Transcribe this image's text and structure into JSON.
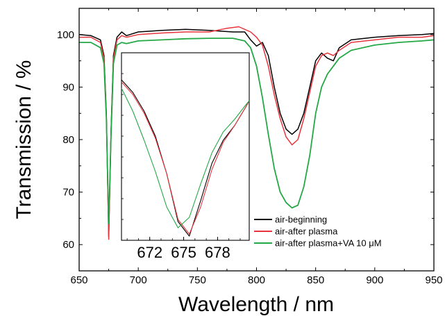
{
  "chart_data": {
    "type": "line",
    "title": "",
    "xlabel": "Wavelength / nm",
    "ylabel": "Transmission / %",
    "xlim": [
      650,
      950
    ],
    "ylim": [
      55,
      105
    ],
    "x_ticks": [
      "650",
      "700",
      "750",
      "800",
      "850",
      "900",
      "950"
    ],
    "y_ticks": [
      "60",
      "70",
      "80",
      "90",
      "100"
    ],
    "grid": false,
    "legend_position": "bottom-right",
    "series": [
      {
        "name": "air-beginning",
        "color": "#000000",
        "x": [
          650,
          660,
          668,
          671,
          673,
          675,
          677,
          679,
          682,
          686,
          690,
          700,
          720,
          740,
          760,
          780,
          790,
          795,
          800,
          805,
          810,
          815,
          820,
          825,
          830,
          835,
          840,
          845,
          850,
          855,
          860,
          865,
          870,
          880,
          900,
          920,
          940,
          950
        ],
        "y": [
          100.0,
          99.8,
          99.0,
          96.0,
          85.0,
          61.5,
          82.0,
          96.0,
          99.5,
          100.5,
          99.8,
          100.5,
          100.8,
          101.0,
          100.8,
          100.5,
          100.5,
          99.0,
          97.8,
          98.5,
          96.0,
          90.0,
          85.0,
          82.0,
          81.0,
          82.0,
          85.0,
          90.0,
          95.0,
          96.5,
          95.5,
          95.0,
          97.5,
          99.0,
          99.5,
          99.8,
          100.0,
          100.2
        ]
      },
      {
        "name": "air-after plasma",
        "color": "#e8333c",
        "x": [
          650,
          660,
          668,
          671,
          673,
          675,
          677,
          679,
          682,
          686,
          690,
          700,
          720,
          740,
          760,
          775,
          785,
          795,
          800,
          805,
          810,
          815,
          820,
          825,
          830,
          835,
          840,
          845,
          850,
          855,
          860,
          865,
          870,
          880,
          900,
          920,
          940,
          950
        ],
        "y": [
          99.5,
          99.5,
          98.5,
          95.5,
          84.5,
          61.0,
          81.5,
          95.5,
          99.0,
          99.8,
          99.5,
          100.0,
          100.3,
          100.5,
          100.5,
          101.2,
          101.5,
          100.5,
          99.5,
          98.0,
          94.0,
          88.5,
          84.0,
          80.5,
          79.0,
          80.0,
          84.0,
          89.0,
          94.0,
          96.0,
          96.5,
          96.0,
          97.0,
          98.5,
          99.0,
          99.5,
          99.5,
          99.8
        ]
      },
      {
        "name": "air-after plasma+VA 10 μM",
        "color": "#22a845",
        "x": [
          650,
          660,
          668,
          671,
          673,
          675,
          677,
          679,
          682,
          686,
          690,
          700,
          720,
          740,
          760,
          780,
          790,
          795,
          800,
          805,
          810,
          815,
          820,
          825,
          830,
          835,
          840,
          845,
          850,
          855,
          860,
          865,
          870,
          880,
          900,
          920,
          940,
          950
        ],
        "y": [
          98.5,
          98.5,
          97.5,
          94.5,
          84.0,
          64.0,
          81.0,
          94.5,
          98.0,
          98.5,
          98.3,
          98.8,
          99.0,
          99.2,
          99.3,
          99.3,
          98.8,
          97.5,
          94.0,
          88.0,
          81.0,
          74.5,
          70.0,
          68.0,
          67.0,
          67.5,
          71.0,
          77.0,
          85.0,
          90.0,
          92.5,
          94.0,
          95.5,
          97.0,
          98.0,
          98.5,
          98.8,
          99.0
        ]
      }
    ],
    "inset": {
      "x_ticks": [
        "672",
        "675",
        "678"
      ],
      "xlim": [
        669.5,
        680.8
      ],
      "ylim": [
        60,
        105
      ],
      "series": [
        {
          "name": "air-beginning",
          "color": "#000000",
          "x": [
            669.5,
            670.5,
            671.5,
            672.5,
            673.5,
            674.5,
            675.5,
            676.5,
            677.5,
            678.5,
            679.5,
            680.5,
            680.8
          ],
          "y": [
            98.5,
            95.5,
            91.0,
            85.0,
            76.0,
            64.5,
            61.0,
            69.5,
            78.5,
            84.0,
            87.5,
            92.0,
            93.5
          ]
        },
        {
          "name": "air-after plasma",
          "color": "#e8333c",
          "x": [
            669.5,
            670.5,
            671.5,
            672.5,
            673.5,
            674.5,
            675.5,
            676.5,
            677.5,
            678.5,
            679.5,
            680.5,
            680.8
          ],
          "y": [
            98.0,
            95.0,
            90.5,
            84.5,
            76.0,
            65.0,
            61.5,
            68.0,
            77.0,
            83.5,
            87.5,
            92.0,
            93.5
          ]
        },
        {
          "name": "air-after plasma+VA 10 μM",
          "color": "#22a845",
          "x": [
            669.5,
            670.5,
            671.5,
            672.5,
            673.5,
            674.5,
            675.5,
            676.5,
            677.5,
            678.5,
            679.5,
            680.5,
            680.8
          ],
          "y": [
            96.5,
            91.0,
            84.0,
            76.5,
            68.0,
            63.0,
            65.5,
            73.5,
            81.0,
            86.0,
            89.0,
            92.5,
            93.5
          ]
        }
      ]
    }
  }
}
